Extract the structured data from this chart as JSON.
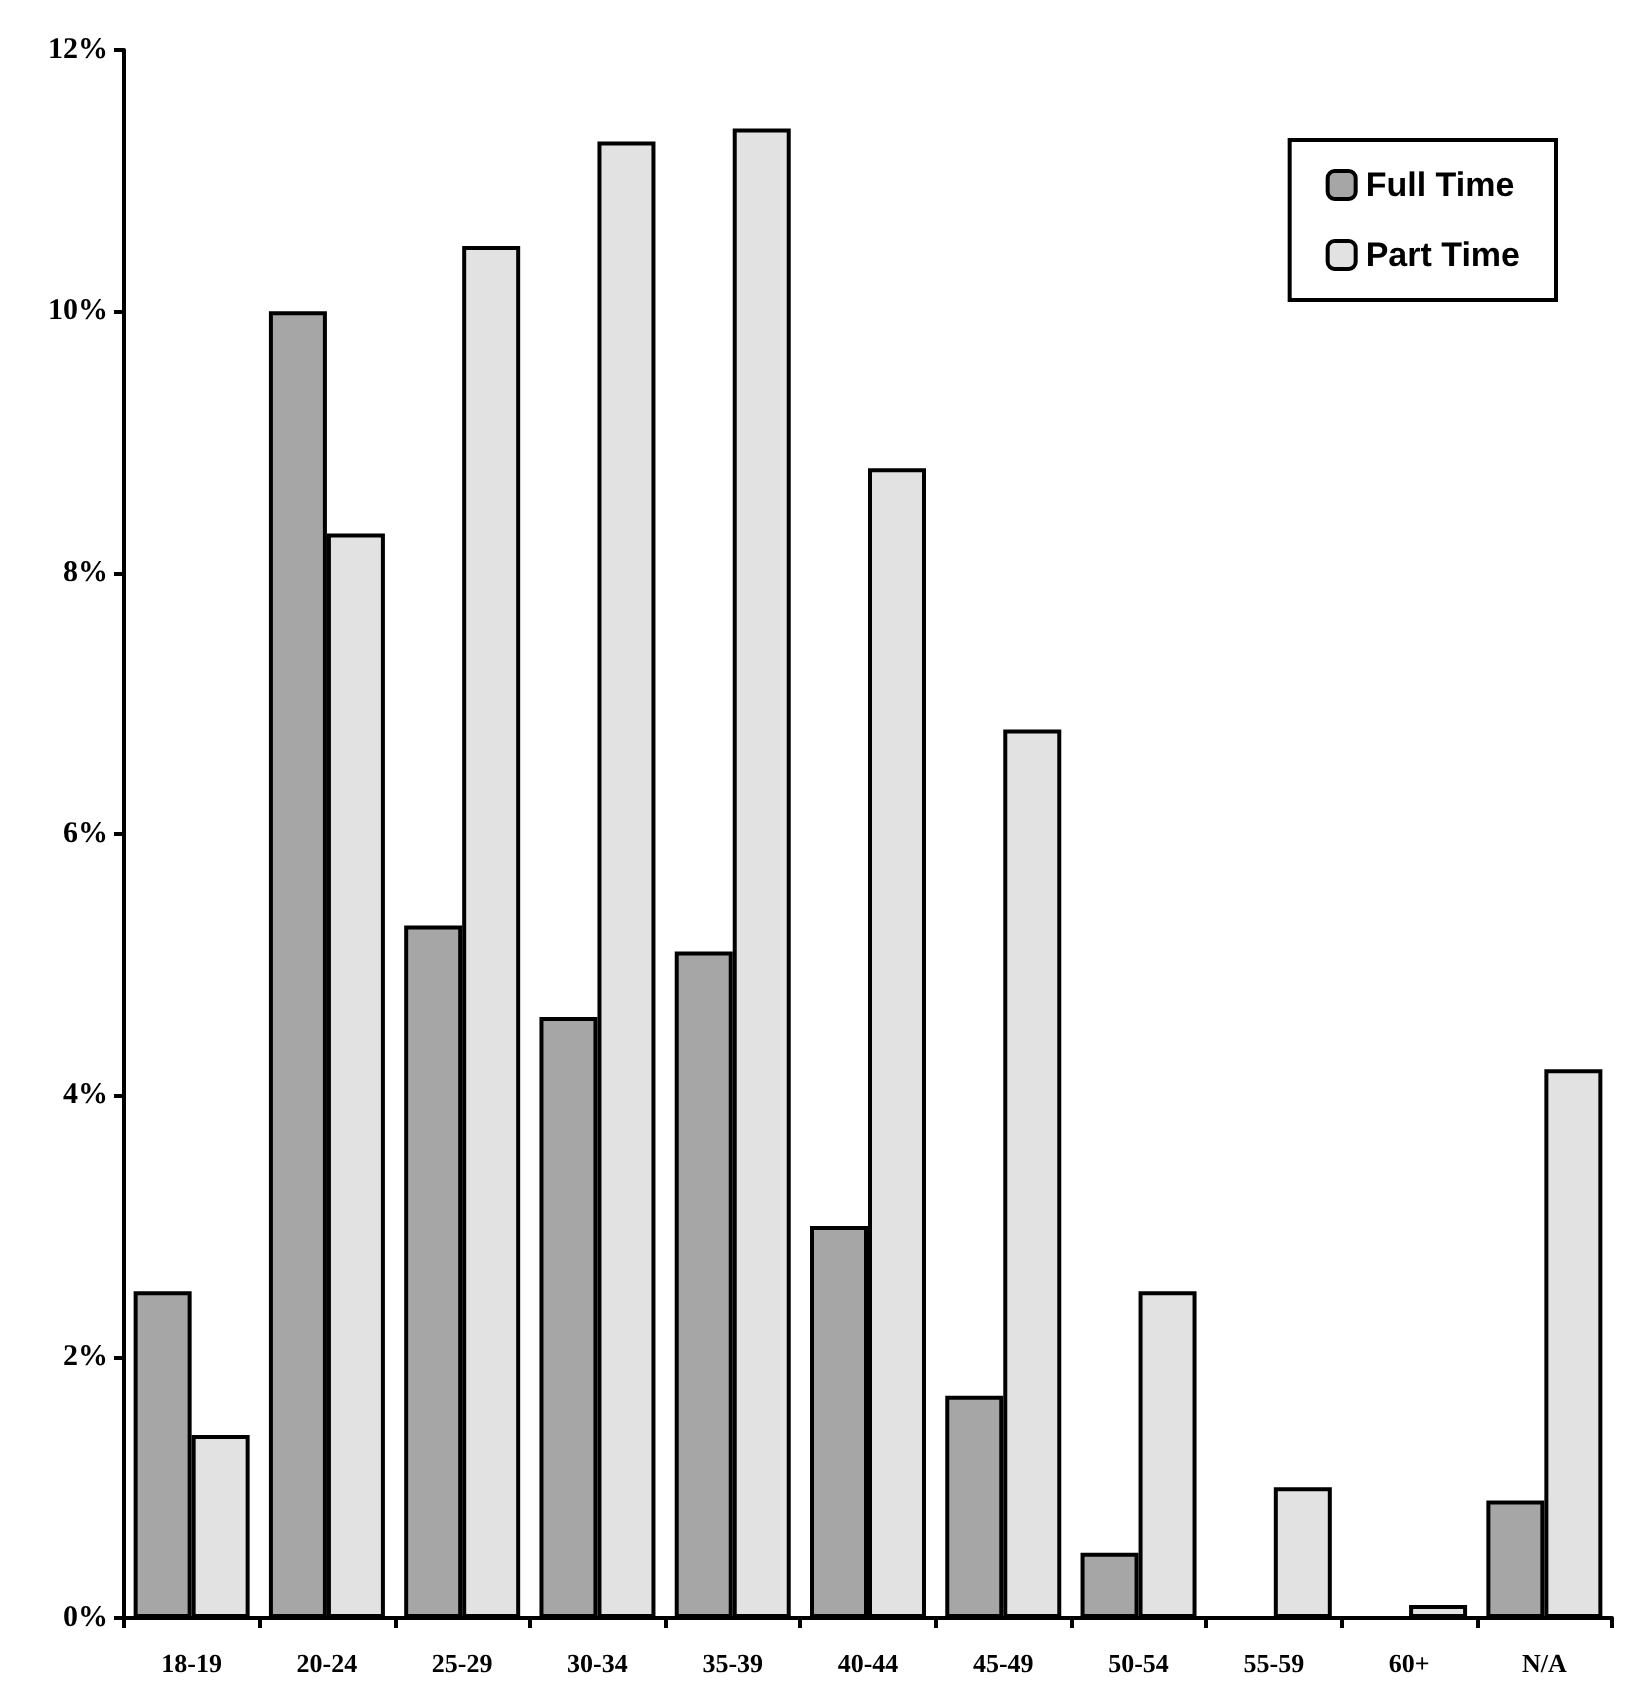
{
  "chart_data": {
    "type": "bar",
    "categories": [
      "18-19",
      "20-24",
      "25-29",
      "30-34",
      "35-39",
      "40-44",
      "45-49",
      "50-54",
      "55-59",
      "60+",
      "N/A"
    ],
    "series": [
      {
        "name": "Full Time",
        "color": "#a6a6a6",
        "values": [
          2.5,
          10.0,
          5.3,
          4.6,
          5.1,
          3.0,
          1.7,
          0.5,
          0,
          0,
          0.9
        ]
      },
      {
        "name": "Part Time",
        "color": "#e2e2e2",
        "values": [
          1.4,
          8.3,
          10.5,
          11.3,
          11.4,
          8.8,
          6.8,
          2.5,
          1.0,
          0.1,
          4.2
        ]
      }
    ],
    "ylim": [
      0,
      12
    ],
    "yticks": [
      {
        "value": 0,
        "label": "0%"
      },
      {
        "value": 2,
        "label": "2%"
      },
      {
        "value": 4,
        "label": "4%"
      },
      {
        "value": 6,
        "label": "6%"
      },
      {
        "value": 8,
        "label": "8%"
      },
      {
        "value": 10,
        "label": "10%"
      },
      {
        "value": 12,
        "label": "12%"
      }
    ],
    "legend": "top right"
  }
}
